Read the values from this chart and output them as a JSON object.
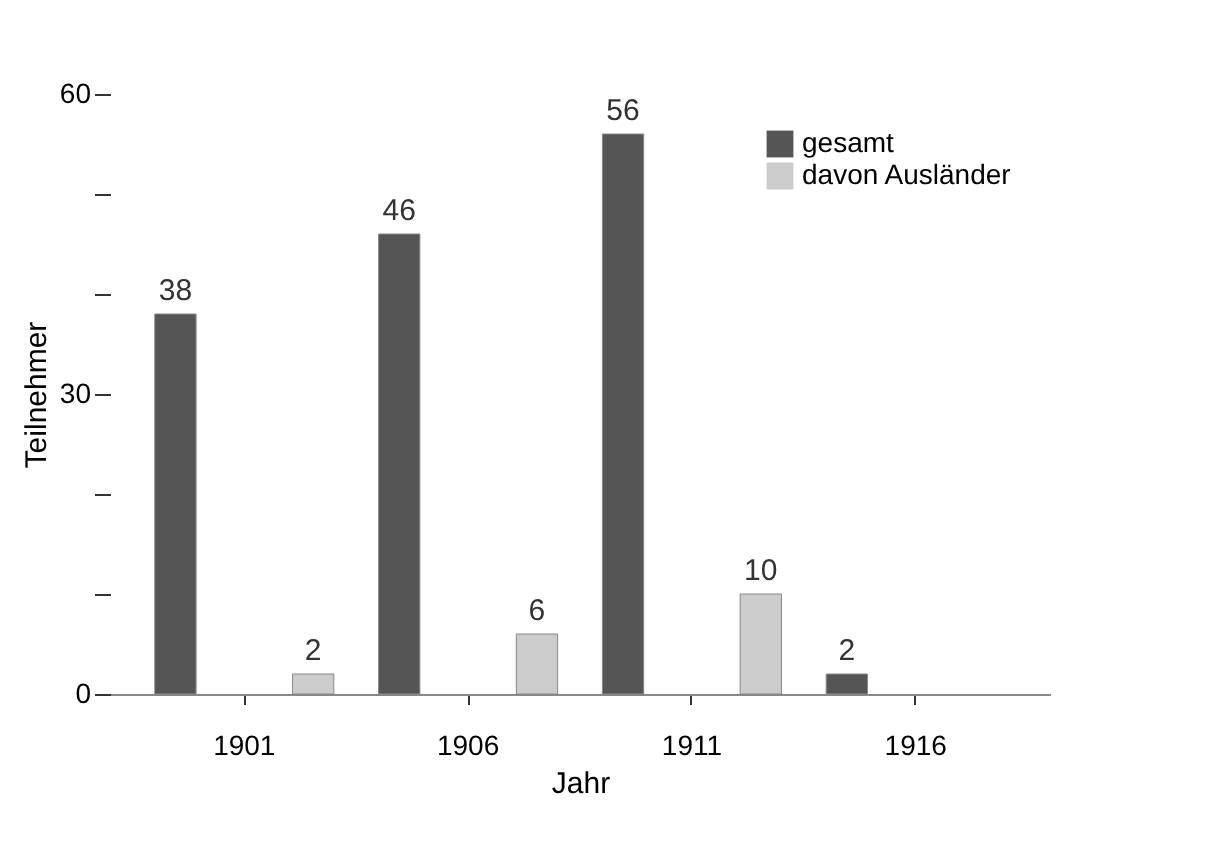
{
  "chart_data": {
    "type": "bar",
    "xlabel": "Jahr",
    "ylabel": "Teilnehmer",
    "categories": [
      "1901",
      "1906",
      "1911",
      "1916"
    ],
    "series": [
      {
        "name": "gesamt",
        "color": "#555555",
        "values": [
          38,
          46,
          56,
          2
        ],
        "value_labels": [
          "38",
          "46",
          "56",
          "2"
        ]
      },
      {
        "name": "davon Ausländer",
        "color": "#cccccc",
        "values": [
          2,
          6,
          10,
          null
        ],
        "value_labels": [
          "2",
          "6",
          "10",
          null
        ]
      }
    ],
    "ylim": [
      0,
      60
    ],
    "yticks": [
      0,
      {
        "value": 10,
        "label": null
      },
      {
        "value": 20,
        "label": null
      },
      30,
      {
        "value": 40,
        "label": null
      },
      {
        "value": 50,
        "label": null
      },
      60
    ],
    "grid": false,
    "legend": "top right"
  }
}
